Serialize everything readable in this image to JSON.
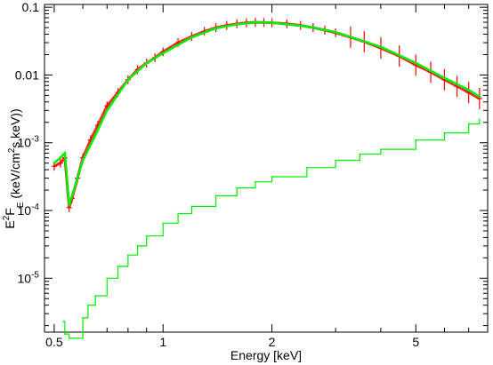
{
  "chart_data": {
    "type": "line",
    "xlabel": "Energy [keV]",
    "ylabel": {
      "parts": [
        {
          "t": "E",
          "s": "normal"
        },
        {
          "t": "2",
          "s": "sup"
        },
        {
          "t": "F",
          "s": "normal"
        },
        {
          "t": "E",
          "s": "sub"
        },
        {
          "t": " (keV/cm",
          "s": "normal"
        },
        {
          "t": "2",
          "s": "sup"
        },
        {
          "t": "s keV))",
          "s": "normal"
        }
      ]
    },
    "x_scale": "log",
    "y_scale": "log",
    "xlim": [
      0.47,
      7.9
    ],
    "ylim": [
      1.6e-06,
      0.11
    ],
    "x_ticks": [
      {
        "value": 0.5,
        "label": "0.5"
      },
      {
        "value": 1,
        "label": "1"
      },
      {
        "value": 2,
        "label": "2"
      },
      {
        "value": 5,
        "label": "5"
      }
    ],
    "y_ticks": [
      {
        "value": 0.1,
        "label": "0.1",
        "style": "plain"
      },
      {
        "value": 0.01,
        "label": "0.01",
        "style": "plain"
      },
      {
        "value": 0.001,
        "base": "10",
        "exp": "-3",
        "style": "pow"
      },
      {
        "value": 0.0001,
        "base": "10",
        "exp": "-4",
        "style": "pow"
      },
      {
        "value": 1e-05,
        "base": "10",
        "exp": "-5",
        "style": "pow"
      }
    ],
    "grid": false,
    "series": [
      {
        "role": "data",
        "color": "#ff0000",
        "x": [
          0.5,
          0.52,
          0.535,
          0.55,
          0.56,
          0.58,
          0.6,
          0.63,
          0.66,
          0.7,
          0.75,
          0.8,
          0.85,
          0.9,
          0.95,
          1.0,
          1.1,
          1.2,
          1.3,
          1.4,
          1.5,
          1.6,
          1.7,
          1.8,
          1.9,
          2.0,
          2.2,
          2.4,
          2.6,
          2.8,
          3.0,
          3.3,
          3.6,
          4.0,
          4.5,
          5.0,
          5.5,
          6.0,
          6.5,
          7.0,
          7.5
        ],
        "y": [
          0.00045,
          0.0005,
          0.0006,
          0.00011,
          0.00015,
          0.0003,
          0.0006,
          0.0011,
          0.0018,
          0.0035,
          0.0055,
          0.0085,
          0.012,
          0.015,
          0.018,
          0.022,
          0.03,
          0.037,
          0.044,
          0.05,
          0.054,
          0.057,
          0.059,
          0.06,
          0.0595,
          0.059,
          0.057,
          0.054,
          0.05,
          0.046,
          0.042,
          0.036,
          0.031,
          0.025,
          0.019,
          0.014,
          0.011,
          0.0085,
          0.0068,
          0.0055,
          0.0045
        ]
      },
      {
        "role": "model",
        "color": "#00ee00",
        "x": [
          0.5,
          0.52,
          0.535,
          0.55,
          0.58,
          0.6,
          0.65,
          0.7,
          0.8,
          0.9,
          1.0,
          1.2,
          1.4,
          1.6,
          1.8,
          2.0,
          2.5,
          3.0,
          4.0,
          5.0,
          6.0,
          7.0,
          7.5
        ],
        "y": [
          0.0005,
          0.0006,
          0.0007,
          0.00012,
          0.0003,
          0.00055,
          0.0013,
          0.003,
          0.0085,
          0.015,
          0.021,
          0.036,
          0.049,
          0.056,
          0.06,
          0.059,
          0.052,
          0.043,
          0.026,
          0.015,
          0.009,
          0.006,
          0.0048
        ]
      },
      {
        "role": "component",
        "color": "#00ee00",
        "x": [
          0.53,
          0.535,
          0.55,
          0.6,
          0.62,
          0.65,
          0.7,
          0.75,
          0.8,
          0.85,
          0.9,
          1.0,
          1.1,
          1.2,
          1.4,
          1.6,
          1.8,
          2.0,
          2.5,
          3.0,
          3.5,
          4.0,
          5.0,
          6.0,
          7.0,
          7.5
        ],
        "y": [
          2.3e-06,
          1.5e-06,
          1.3e-06,
          2.6e-06,
          4e-06,
          5.5e-06,
          1e-05,
          1.5e-05,
          2.2e-05,
          3e-05,
          4.2e-05,
          6.5e-05,
          9e-05,
          0.000115,
          0.000165,
          0.000215,
          0.000265,
          0.000315,
          0.00043,
          0.00055,
          0.00068,
          0.0008,
          0.0011,
          0.0014,
          0.0019,
          0.0022
        ]
      }
    ]
  }
}
